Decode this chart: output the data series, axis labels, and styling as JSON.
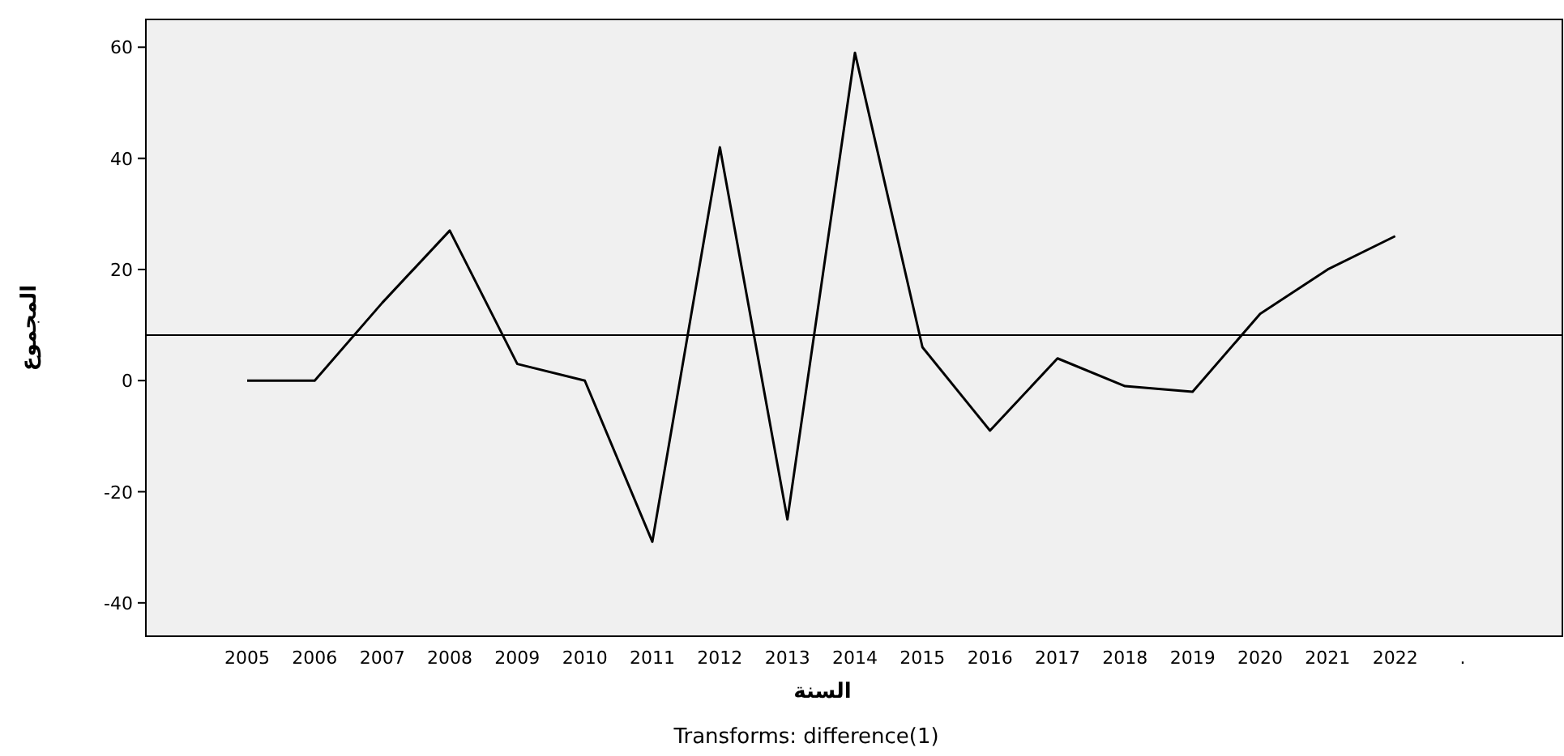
{
  "chart_data": {
    "type": "line",
    "xlabel": "السنة",
    "ylabel": "المجموع",
    "categories": [
      "2005",
      "2006",
      "2007",
      "2008",
      "2009",
      "2010",
      "2011",
      "2012",
      "2013",
      "2014",
      "2015",
      "2016",
      "2017",
      "2018",
      "2019",
      "2020",
      "2021",
      "2022",
      "."
    ],
    "series": [
      {
        "color": "#000000",
        "values": [
          0,
          0,
          14,
          27,
          3,
          0,
          -29,
          42,
          -25,
          59,
          6,
          -9,
          4,
          -1,
          -2,
          12,
          20,
          26,
          null
        ]
      }
    ],
    "ylim": [
      -46,
      65
    ],
    "yticks": [
      -40,
      -20,
      0,
      20,
      40,
      60
    ],
    "ref_lines": [
      {
        "axis": "y",
        "value": 8.2,
        "color": "#000000"
      }
    ],
    "annotations": [
      "Transforms: difference(1)"
    ]
  }
}
